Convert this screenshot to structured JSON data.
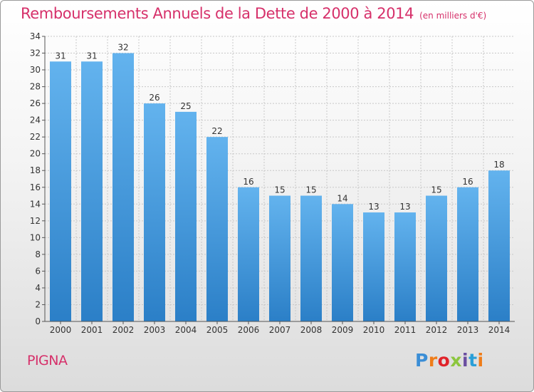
{
  "title": "Remboursements Annuels de la Dette de 2000 à 2014",
  "subtitle": "(en milliers d'€)",
  "commune": "PIGNA",
  "logo_text": "Proxiti",
  "colors": {
    "title": "#d6306a",
    "bar_light": "#63b3ee",
    "bar_dark": "#2b7fc7",
    "grid": "#c8c8c8"
  },
  "chart_data": {
    "type": "bar",
    "title": "Remboursements Annuels de la Dette de 2000 à 2014",
    "subtitle": "(en milliers d'€)",
    "categories": [
      "2000",
      "2001",
      "2002",
      "2003",
      "2004",
      "2005",
      "2006",
      "2007",
      "2008",
      "2009",
      "2010",
      "2011",
      "2012",
      "2013",
      "2014"
    ],
    "values": [
      31,
      31,
      32,
      26,
      25,
      22,
      16,
      15,
      15,
      14,
      13,
      13,
      15,
      16,
      18
    ],
    "ylim": [
      0,
      34
    ],
    "yticks": [
      0,
      2,
      4,
      6,
      8,
      10,
      12,
      14,
      16,
      18,
      20,
      22,
      24,
      26,
      28,
      30,
      32,
      34
    ],
    "grid": true,
    "data_labels": true
  }
}
